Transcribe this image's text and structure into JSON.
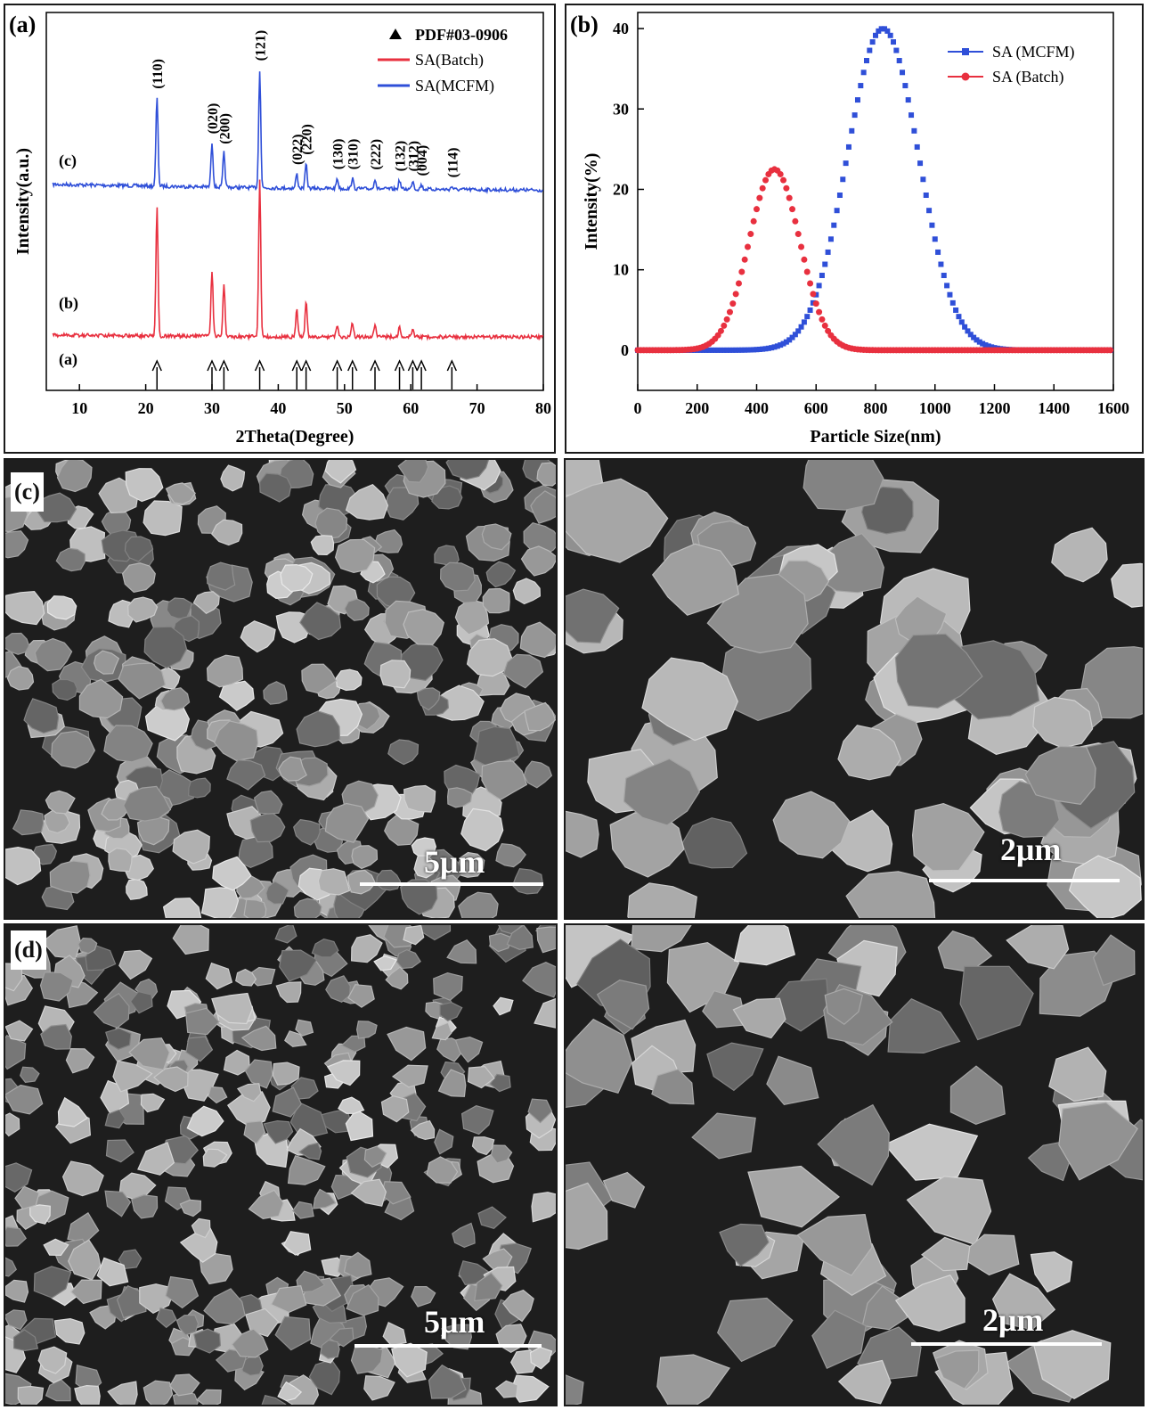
{
  "chart_data": [
    {
      "panel_label": "(a)",
      "type": "line",
      "xlabel": "2Theta(Degree)",
      "ylabel": "Intensity(a.u.)",
      "xlim": [
        5,
        80
      ],
      "xticks": [
        10,
        20,
        30,
        40,
        50,
        60,
        70,
        80
      ],
      "legend": [
        {
          "name": "PDF#03-0906",
          "marker": "triangle",
          "color": "#000000"
        },
        {
          "name": "SA(Batch)",
          "color": "#e8303f"
        },
        {
          "name": "SA(MCFM)",
          "color": "#2f4fd8"
        }
      ],
      "legend_position": "top-right",
      "trace_labels": [
        "(c)",
        "(b)",
        "(a)"
      ],
      "reference_peaks": [
        21.7,
        30.0,
        31.8,
        37.2,
        42.8,
        44.2,
        48.9,
        51.2,
        54.6,
        58.3,
        60.3,
        61.6,
        66.2
      ],
      "series": [
        {
          "name": "SA(MCFM)",
          "trace": "(c)",
          "color": "#2f4fd8",
          "peaks": [
            {
              "x": 21.7,
              "h": 0.62
            },
            {
              "x": 30.0,
              "h": 0.31
            },
            {
              "x": 31.8,
              "h": 0.24
            },
            {
              "x": 37.2,
              "h": 0.82
            },
            {
              "x": 42.8,
              "h": 0.1
            },
            {
              "x": 44.2,
              "h": 0.17
            },
            {
              "x": 48.9,
              "h": 0.07
            },
            {
              "x": 51.2,
              "h": 0.07
            },
            {
              "x": 54.6,
              "h": 0.07
            },
            {
              "x": 58.3,
              "h": 0.06
            },
            {
              "x": 60.3,
              "h": 0.06
            },
            {
              "x": 61.6,
              "h": 0.03
            },
            {
              "x": 66.2,
              "h": 0.02
            }
          ]
        },
        {
          "name": "SA(Batch)",
          "trace": "(b)",
          "color": "#e8303f",
          "peaks": [
            {
              "x": 21.7,
              "h": 0.82
            },
            {
              "x": 30.0,
              "h": 0.42
            },
            {
              "x": 31.8,
              "h": 0.33
            },
            {
              "x": 37.2,
              "h": 1.0
            },
            {
              "x": 42.8,
              "h": 0.18
            },
            {
              "x": 44.2,
              "h": 0.23
            },
            {
              "x": 48.9,
              "h": 0.08
            },
            {
              "x": 51.2,
              "h": 0.09
            },
            {
              "x": 54.6,
              "h": 0.08
            },
            {
              "x": 58.3,
              "h": 0.06
            },
            {
              "x": 60.3,
              "h": 0.04
            }
          ]
        }
      ],
      "peak_labels": [
        {
          "x": 21.7,
          "text": "(110)"
        },
        {
          "x": 30.0,
          "text": "(020)"
        },
        {
          "x": 31.8,
          "text": "(200)"
        },
        {
          "x": 37.2,
          "text": "(121)"
        },
        {
          "x": 42.8,
          "text": "(022)"
        },
        {
          "x": 44.2,
          "text": "(220)"
        },
        {
          "x": 48.9,
          "text": "(130)"
        },
        {
          "x": 51.2,
          "text": "(310)"
        },
        {
          "x": 54.6,
          "text": "(222)"
        },
        {
          "x": 58.3,
          "text": "(132)"
        },
        {
          "x": 60.3,
          "text": "(312)"
        },
        {
          "x": 61.6,
          "text": "(004)"
        },
        {
          "x": 66.2,
          "text": "(114)"
        }
      ]
    },
    {
      "panel_label": "(b)",
      "type": "line",
      "xlabel": "Particle Size(nm)",
      "ylabel": "Intensity(%)",
      "xlim": [
        0,
        1600
      ],
      "ylim": [
        -5,
        42
      ],
      "xticks": [
        0,
        200,
        400,
        600,
        800,
        1000,
        1200,
        1400,
        1600
      ],
      "yticks": [
        0,
        10,
        20,
        30,
        40
      ],
      "legend_position": "top-right",
      "series": [
        {
          "name": "SA (MCFM)",
          "marker": "square",
          "color": "#2f4fd8",
          "peak_x": 825,
          "peak_y": 40,
          "sigma": 120
        },
        {
          "name": "SA (Batch)",
          "marker": "circle",
          "color": "#e8303f",
          "peak_x": 460,
          "peak_y": 22.5,
          "sigma": 85
        }
      ]
    }
  ],
  "sem_images": [
    {
      "panel_label": "(c)",
      "scale": "5μm"
    },
    {
      "scale": "2μm"
    },
    {
      "panel_label": "(d)",
      "scale": "5μm"
    },
    {
      "scale": "2μm"
    }
  ]
}
